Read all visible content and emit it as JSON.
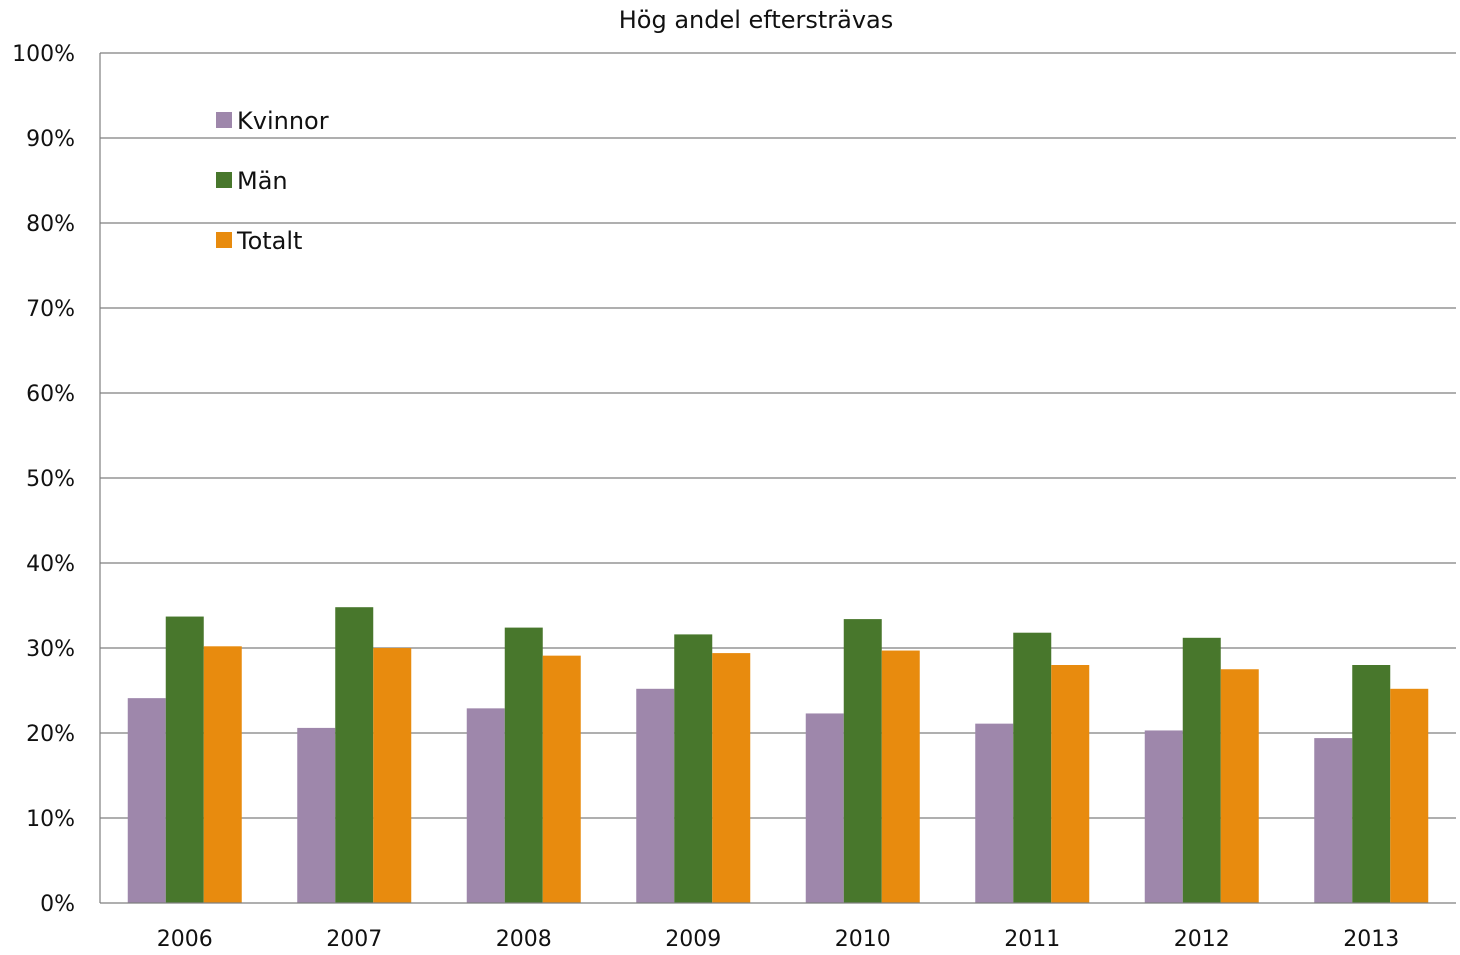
{
  "chart_data": {
    "type": "bar",
    "title": "Hög andel eftersträvas",
    "xlabel": "",
    "ylabel": "",
    "categories": [
      "2006",
      "2007",
      "2008",
      "2009",
      "2010",
      "2011",
      "2012",
      "2013"
    ],
    "series": [
      {
        "name": "Kvinnor",
        "color": "#9e87ab",
        "values": [
          24.1,
          20.6,
          22.9,
          25.2,
          22.3,
          21.1,
          20.3,
          19.4
        ]
      },
      {
        "name": "Män",
        "color": "#48772c",
        "values": [
          33.7,
          34.8,
          32.4,
          31.6,
          33.4,
          31.8,
          31.2,
          28.0
        ]
      },
      {
        "name": "Totalt",
        "color": "#e88b0e",
        "values": [
          30.2,
          30.0,
          29.1,
          29.4,
          29.7,
          28.0,
          27.5,
          25.2
        ]
      }
    ],
    "ylim": [
      0,
      100
    ],
    "yticks": [
      "0%",
      "10%",
      "20%",
      "30%",
      "40%",
      "50%",
      "60%",
      "70%",
      "80%",
      "90%",
      "100%"
    ],
    "grid": true,
    "legend_position": "top-left"
  }
}
